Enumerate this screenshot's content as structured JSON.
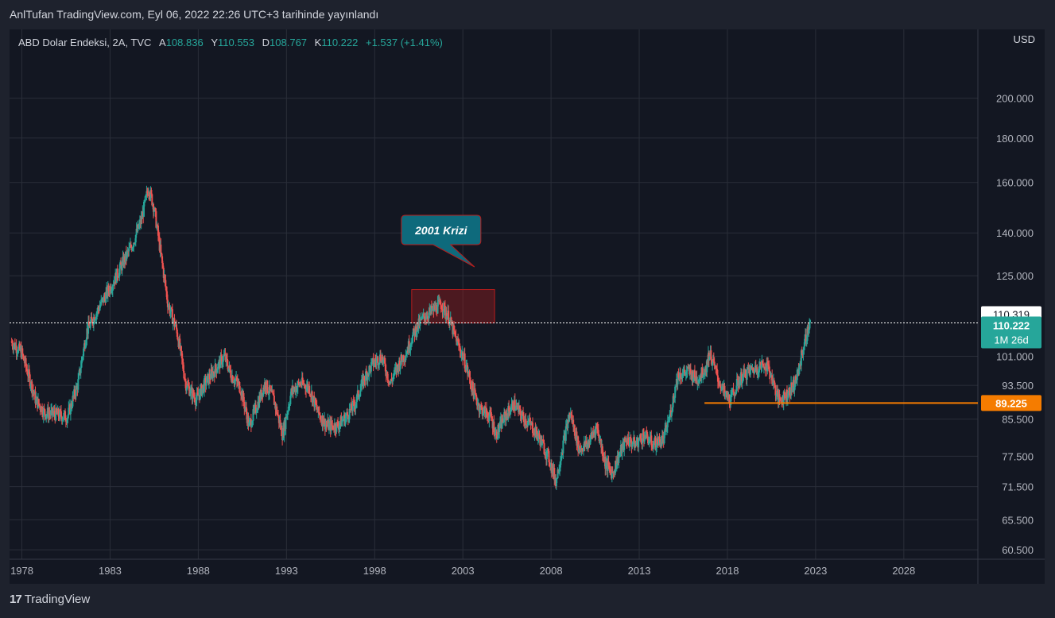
{
  "header": {
    "publish_line": "AnlTufan TradingView.com, Eyl 06, 2022 22:26 UTC+3 tarihinde yayınlandı"
  },
  "legend": {
    "symbol": "ABD Dolar Endeksi, 2A, TVC",
    "open_label": "A",
    "open": "108.836",
    "high_label": "Y",
    "high": "110.553",
    "low_label": "D",
    "low": "108.767",
    "close_label": "K",
    "close": "110.222",
    "change": "+1.537 (+1.41%)"
  },
  "footer": {
    "brand": "TradingView",
    "logo_glyph": "17"
  },
  "colors": {
    "background": "#131722",
    "up": "#26a69a",
    "down": "#ef5350",
    "grid": "#2a2e39",
    "support_line": "#f57c00",
    "callout": "#0e6a7c"
  },
  "chart_data": {
    "type": "candlestick",
    "scale": "log",
    "y_unit": "USD",
    "y_ticks": [
      "200.000",
      "180.000",
      "160.000",
      "140.000",
      "125.000",
      "101.000",
      "93.500",
      "85.500",
      "77.500",
      "71.500",
      "65.500",
      "60.500"
    ],
    "x_ticks": [
      "1978",
      "1983",
      "1988",
      "1993",
      "1998",
      "2003",
      "2008",
      "2013",
      "2018",
      "2023",
      "2028"
    ],
    "x_range": [
      1977.3,
      2032.2
    ],
    "y_range": [
      59,
      240
    ],
    "last_price": {
      "value": "110.222",
      "countdown": "1M 26d"
    },
    "crosshair_price": "110.319",
    "support_level": {
      "value": "89.225",
      "from": 2016.7
    },
    "annotation": {
      "text": "2001 Krizi",
      "box": {
        "x0": 2000.1,
        "x1": 2004.8,
        "y0": 110.3,
        "y1": 120.5
      }
    },
    "anchors": [
      [
        1977.4,
        105
      ],
      [
        1978.0,
        102
      ],
      [
        1978.8,
        90
      ],
      [
        1979.3,
        87
      ],
      [
        1980.0,
        86.5
      ],
      [
        1980.6,
        86
      ],
      [
        1981.2,
        94
      ],
      [
        1981.7,
        108
      ],
      [
        1982.3,
        114
      ],
      [
        1982.7,
        118
      ],
      [
        1983.3,
        124
      ],
      [
        1983.8,
        130
      ],
      [
        1984.3,
        136
      ],
      [
        1984.8,
        145
      ],
      [
        1985.2,
        158
      ],
      [
        1985.5,
        150
      ],
      [
        1985.9,
        132
      ],
      [
        1986.3,
        116
      ],
      [
        1986.8,
        108
      ],
      [
        1987.3,
        94
      ],
      [
        1987.9,
        90
      ],
      [
        1988.4,
        94
      ],
      [
        1988.9,
        97
      ],
      [
        1989.5,
        101
      ],
      [
        1989.9,
        96
      ],
      [
        1990.4,
        93
      ],
      [
        1990.9,
        84
      ],
      [
        1991.3,
        88
      ],
      [
        1991.8,
        94
      ],
      [
        1992.3,
        90
      ],
      [
        1992.8,
        82
      ],
      [
        1993.3,
        92
      ],
      [
        1993.8,
        94
      ],
      [
        1994.3,
        93
      ],
      [
        1994.8,
        87
      ],
      [
        1995.3,
        84
      ],
      [
        1995.9,
        84
      ],
      [
        1996.4,
        86
      ],
      [
        1996.9,
        89
      ],
      [
        1997.4,
        95
      ],
      [
        1997.9,
        99
      ],
      [
        1998.4,
        101
      ],
      [
        1998.9,
        94
      ],
      [
        1999.4,
        99
      ],
      [
        1999.8,
        102
      ],
      [
        2000.3,
        108
      ],
      [
        2000.8,
        112
      ],
      [
        2001.3,
        114
      ],
      [
        2001.8,
        116
      ],
      [
        2002.2,
        112
      ],
      [
        2002.6,
        106
      ],
      [
        2003.1,
        100
      ],
      [
        2003.6,
        92
      ],
      [
        2004.0,
        88
      ],
      [
        2004.6,
        86
      ],
      [
        2004.9,
        82
      ],
      [
        2005.4,
        86
      ],
      [
        2005.9,
        89
      ],
      [
        2006.4,
        86
      ],
      [
        2006.9,
        84
      ],
      [
        2007.4,
        81
      ],
      [
        2007.9,
        77
      ],
      [
        2008.3,
        72.5
      ],
      [
        2008.7,
        80
      ],
      [
        2009.1,
        87
      ],
      [
        2009.6,
        79
      ],
      [
        2010.1,
        80
      ],
      [
        2010.6,
        84
      ],
      [
        2011.1,
        76
      ],
      [
        2011.5,
        74
      ],
      [
        2011.9,
        78
      ],
      [
        2012.3,
        81
      ],
      [
        2012.8,
        80
      ],
      [
        2013.3,
        82
      ],
      [
        2013.8,
        80
      ],
      [
        2014.4,
        81
      ],
      [
        2014.8,
        87
      ],
      [
        2015.2,
        96
      ],
      [
        2015.8,
        97
      ],
      [
        2016.3,
        95
      ],
      [
        2016.8,
        98
      ],
      [
        2017.0,
        102
      ],
      [
        2017.5,
        95
      ],
      [
        2017.9,
        91
      ],
      [
        2018.2,
        90
      ],
      [
        2018.7,
        95
      ],
      [
        2019.2,
        97
      ],
      [
        2019.7,
        98
      ],
      [
        2020.2,
        99
      ],
      [
        2020.5,
        96
      ],
      [
        2020.9,
        90
      ],
      [
        2021.3,
        91
      ],
      [
        2021.7,
        93
      ],
      [
        2022.0,
        96
      ],
      [
        2022.3,
        103
      ],
      [
        2022.7,
        110.2
      ]
    ]
  }
}
